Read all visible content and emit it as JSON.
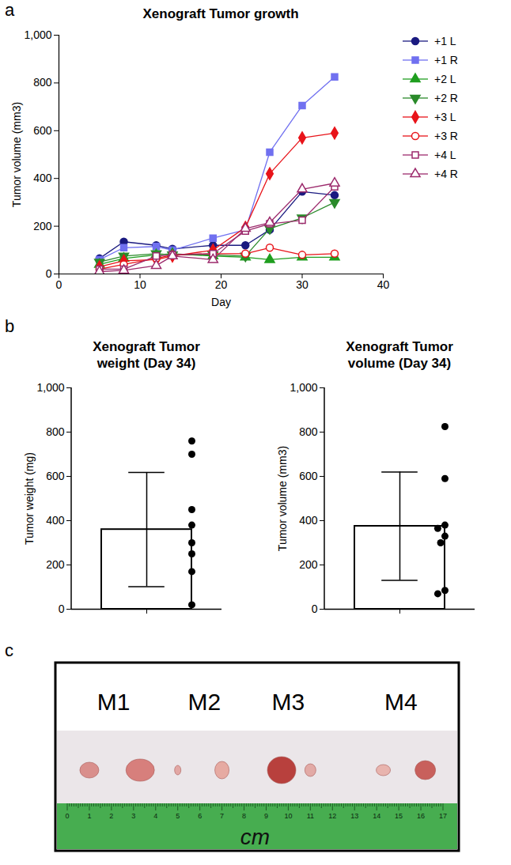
{
  "chart_data": [
    {
      "type": "line",
      "panel": "a",
      "title": "Xenograft Tumor growth",
      "x_label": "Day",
      "y_label": "Tumor volume (mm3)",
      "x": [
        5,
        8,
        12,
        14,
        19,
        23,
        26,
        30,
        34
      ],
      "series": [
        {
          "name": "+1 L",
          "color": "#1a1a80",
          "marker": "circle",
          "values": [
            65,
            135,
            120,
            105,
            120,
            120,
            185,
            345,
            330
          ]
        },
        {
          "name": "+1 R",
          "color": "#7070f0",
          "marker": "square",
          "values": [
            60,
            110,
            115,
            100,
            150,
            185,
            510,
            705,
            825
          ]
        },
        {
          "name": "+2 L",
          "color": "#1f9e1f",
          "marker": "triangle",
          "values": [
            40,
            65,
            80,
            85,
            75,
            70,
            60,
            70,
            70
          ]
        },
        {
          "name": "+2 R",
          "color": "#2a8a2a",
          "marker": "triangle-down",
          "values": [
            50,
            75,
            85,
            80,
            80,
            75,
            190,
            235,
            300
          ]
        },
        {
          "name": "+3 L",
          "color": "#e8141a",
          "marker": "diamond",
          "values": [
            30,
            55,
            60,
            75,
            100,
            195,
            420,
            570,
            590
          ]
        },
        {
          "name": "+3 R",
          "color": "#e8141a",
          "marker": "open-circle",
          "values": [
            20,
            40,
            65,
            80,
            85,
            85,
            110,
            80,
            85
          ]
        },
        {
          "name": "+4 L",
          "color": "#9c2a6c",
          "marker": "open-square",
          "values": [
            20,
            20,
            75,
            80,
            85,
            180,
            210,
            225,
            365
          ]
        },
        {
          "name": "+4 R",
          "color": "#9c2a6c",
          "marker": "open-triangle",
          "values": [
            10,
            15,
            35,
            75,
            60,
            190,
            215,
            355,
            380
          ]
        }
      ],
      "xlim": [
        0,
        40
      ],
      "xticks": [
        0,
        10,
        20,
        30,
        40
      ],
      "ylim": [
        0,
        1000
      ],
      "yticks": [
        0,
        200,
        400,
        600,
        800,
        1000
      ],
      "grid": false,
      "legend": "right"
    },
    {
      "type": "bar",
      "panel": "b",
      "title": "Xenograft Tumor weight (Day 34)",
      "y_label": "Tumor weight (mg)",
      "categories": [
        null
      ],
      "values": [
        360
      ],
      "error": [
        258
      ],
      "points": [
        760,
        700,
        450,
        380,
        300,
        250,
        170,
        20
      ],
      "color": "#ffffff",
      "ylim": [
        0,
        1000
      ],
      "yticks": [
        0,
        200,
        400,
        600,
        800,
        1000
      ],
      "grid": false
    },
    {
      "type": "bar",
      "title": "Xenograft Tumor volume (Day 34)",
      "y_label": "Tumor volume (mm3)",
      "categories": [
        null
      ],
      "values": [
        375
      ],
      "error": [
        245
      ],
      "points": [
        825,
        590,
        380,
        365,
        330,
        300,
        85,
        70
      ],
      "color": "#ffffff",
      "ylim": [
        0,
        1000
      ],
      "yticks": [
        0,
        200,
        400,
        600,
        800,
        1000
      ],
      "grid": false
    }
  ],
  "photo": {
    "panel": "c",
    "labels": [
      "M1",
      "M2",
      "M3",
      "M4"
    ],
    "ruler_ticks": [
      0,
      1,
      2,
      3,
      4,
      5,
      6,
      7,
      8,
      9,
      10,
      11,
      12,
      13,
      14,
      15,
      16,
      17
    ],
    "ruler_unit": "cm"
  }
}
